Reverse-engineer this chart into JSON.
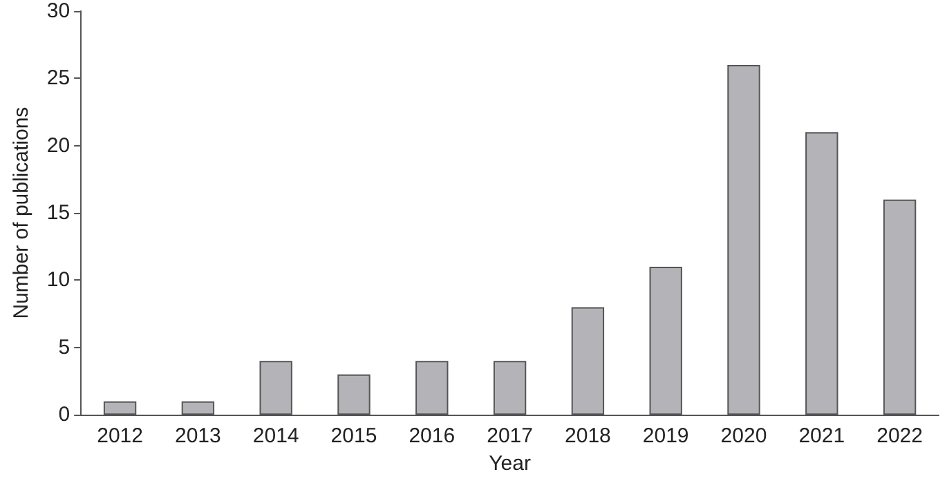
{
  "chart_data": {
    "type": "bar",
    "xlabel": "Year",
    "ylabel": "Number of publications",
    "categories": [
      "2012",
      "2013",
      "2014",
      "2015",
      "2016",
      "2017",
      "2018",
      "2019",
      "2020",
      "2021",
      "2022"
    ],
    "values": [
      1,
      1,
      4,
      3,
      4,
      4,
      8,
      11,
      26,
      21,
      16
    ],
    "color": "#b4b4b8",
    "ylim": [
      0,
      30
    ],
    "yticks": [
      0,
      5,
      10,
      15,
      20,
      25,
      30
    ],
    "grid": false
  }
}
